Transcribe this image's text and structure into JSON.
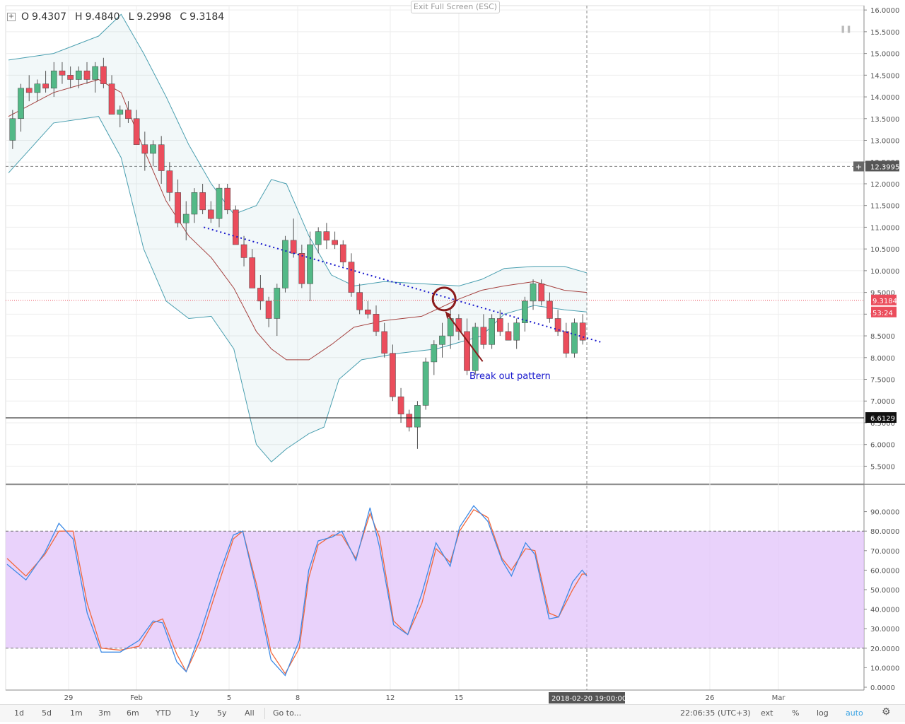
{
  "window": {
    "exit_fullscreen_label": "Exit Full Screen (ESC)"
  },
  "ohlc": {
    "o_label": "O",
    "o": "9.4307",
    "h_label": "H",
    "h": "9.4840",
    "l_label": "L",
    "l": "9.2998",
    "c_label": "C",
    "c": "9.3184"
  },
  "icons": {
    "expand": "plus-square-icon",
    "settings": "gear-icon",
    "pause": "pause-icon"
  },
  "colors": {
    "up": "#53b987",
    "down": "#eb4d5c",
    "bb_band": "#4a9fb0",
    "bb_basis": "#a5413f",
    "stoch_k": "#3d8ae6",
    "stoch_d": "#f2683c",
    "stoch_band": "#e2c3fa",
    "trendline": "#1515cc",
    "annotation": "#8b1a1a"
  },
  "chart_data": [
    {
      "type": "candlestick",
      "title": "",
      "price_axis": {
        "ylim": [
          5.1,
          16.1
        ],
        "ticks": [
          "16.0000",
          "15.5000",
          "15.0000",
          "14.5000",
          "14.0000",
          "13.5000",
          "13.0000",
          "12.5000",
          "12.0000",
          "11.5000",
          "11.0000",
          "10.5000",
          "10.0000",
          "9.5000",
          "9.0000",
          "8.5000",
          "8.0000",
          "7.5000",
          "7.0000",
          "6.5000",
          "6.0000",
          "5.5000"
        ]
      },
      "time_axis": {
        "labels": [
          "29",
          "Feb",
          "5",
          "8",
          "12",
          "15",
          "26",
          "Mar"
        ],
        "crosshair_label": "2018-02-20 19:00:00"
      },
      "markers": {
        "last_price": "9.3184",
        "countdown": "53:24",
        "crosshair_price": "12.3995",
        "support_level": "6.6129"
      },
      "bollinger": {
        "upper": [
          [
            0,
            14.85
          ],
          [
            6,
            15.0
          ],
          [
            12,
            15.4
          ],
          [
            15,
            15.9
          ],
          [
            18,
            15.0
          ],
          [
            21,
            14.0
          ],
          [
            24,
            12.9
          ],
          [
            27,
            12.0
          ],
          [
            30,
            11.3
          ],
          [
            33,
            11.5
          ],
          [
            35,
            12.1
          ],
          [
            37,
            12.0
          ],
          [
            40,
            10.8
          ],
          [
            43,
            9.9
          ],
          [
            46,
            9.65
          ],
          [
            50,
            9.75
          ],
          [
            55,
            9.7
          ],
          [
            60,
            9.65
          ],
          [
            63,
            9.8
          ],
          [
            66,
            10.05
          ],
          [
            70,
            10.1
          ],
          [
            74,
            10.1
          ],
          [
            77,
            9.95
          ]
        ],
        "lower": [
          [
            0,
            12.25
          ],
          [
            6,
            13.4
          ],
          [
            12,
            13.55
          ],
          [
            15,
            12.6
          ],
          [
            18,
            10.5
          ],
          [
            21,
            9.3
          ],
          [
            24,
            8.9
          ],
          [
            27,
            8.95
          ],
          [
            30,
            8.2
          ],
          [
            33,
            6.0
          ],
          [
            35,
            5.6
          ],
          [
            37,
            5.9
          ],
          [
            40,
            6.25
          ],
          [
            42,
            6.4
          ],
          [
            44,
            7.5
          ],
          [
            47,
            7.95
          ],
          [
            52,
            8.1
          ],
          [
            57,
            8.2
          ],
          [
            60,
            8.35
          ],
          [
            63,
            8.5
          ],
          [
            66,
            9.0
          ],
          [
            70,
            9.2
          ],
          [
            74,
            9.1
          ],
          [
            77,
            9.05
          ]
        ],
        "basis": [
          [
            0,
            13.55
          ],
          [
            6,
            14.1
          ],
          [
            12,
            14.4
          ],
          [
            15,
            14.1
          ],
          [
            18,
            12.8
          ],
          [
            21,
            11.6
          ],
          [
            24,
            10.8
          ],
          [
            27,
            10.3
          ],
          [
            30,
            9.6
          ],
          [
            33,
            8.6
          ],
          [
            35,
            8.2
          ],
          [
            37,
            7.95
          ],
          [
            40,
            7.95
          ],
          [
            43,
            8.3
          ],
          [
            46,
            8.7
          ],
          [
            50,
            8.85
          ],
          [
            55,
            8.95
          ],
          [
            60,
            9.35
          ],
          [
            63,
            9.55
          ],
          [
            66,
            9.65
          ],
          [
            70,
            9.75
          ],
          [
            74,
            9.55
          ],
          [
            77,
            9.5
          ]
        ]
      },
      "trendline": {
        "from": [
          26,
          11.0
        ],
        "to": [
          79,
          8.35
        ],
        "style": "dotted"
      },
      "support_line": 6.6129,
      "annotation": {
        "text": "Break out pattern",
        "circle_at": [
          58,
          9.35
        ],
        "arrow_from": [
          62,
          8.4
        ]
      },
      "candles_ohlc": [
        [
          13.0,
          13.7,
          12.8,
          13.5
        ],
        [
          13.5,
          14.3,
          13.2,
          14.2
        ],
        [
          14.2,
          14.5,
          13.9,
          14.1
        ],
        [
          14.1,
          14.4,
          13.9,
          14.3
        ],
        [
          14.3,
          14.6,
          14.1,
          14.2
        ],
        [
          14.2,
          14.8,
          14.0,
          14.6
        ],
        [
          14.6,
          14.8,
          14.3,
          14.5
        ],
        [
          14.5,
          14.7,
          14.2,
          14.4
        ],
        [
          14.4,
          14.7,
          14.2,
          14.6
        ],
        [
          14.6,
          14.8,
          14.3,
          14.4
        ],
        [
          14.4,
          14.8,
          14.1,
          14.7
        ],
        [
          14.7,
          14.9,
          14.2,
          14.3
        ],
        [
          14.3,
          14.5,
          13.7,
          13.6
        ],
        [
          13.6,
          13.8,
          13.3,
          13.7
        ],
        [
          13.7,
          13.9,
          13.4,
          13.5
        ],
        [
          13.5,
          13.7,
          12.9,
          12.9
        ],
        [
          12.9,
          13.2,
          12.3,
          12.7
        ],
        [
          12.7,
          13.0,
          12.4,
          12.9
        ],
        [
          12.9,
          13.1,
          12.0,
          12.3
        ],
        [
          12.3,
          12.5,
          11.6,
          11.8
        ],
        [
          11.8,
          12.1,
          11.0,
          11.1
        ],
        [
          11.1,
          11.6,
          10.7,
          11.3
        ],
        [
          11.3,
          11.9,
          11.1,
          11.8
        ],
        [
          11.8,
          12.0,
          11.3,
          11.4
        ],
        [
          11.4,
          11.6,
          11.1,
          11.2
        ],
        [
          11.2,
          12.0,
          11.0,
          11.9
        ],
        [
          11.9,
          12.0,
          11.3,
          11.4
        ],
        [
          11.4,
          11.5,
          10.6,
          10.6
        ],
        [
          10.6,
          10.8,
          10.1,
          10.3
        ],
        [
          10.3,
          10.5,
          9.8,
          9.6
        ],
        [
          9.6,
          9.9,
          9.1,
          9.3
        ],
        [
          9.3,
          9.4,
          8.7,
          8.9
        ],
        [
          8.9,
          9.7,
          8.5,
          9.6
        ],
        [
          9.6,
          10.8,
          9.5,
          10.7
        ],
        [
          10.7,
          11.2,
          10.3,
          10.4
        ],
        [
          10.4,
          10.6,
          9.6,
          9.7
        ],
        [
          9.7,
          10.9,
          9.3,
          10.6
        ],
        [
          10.6,
          11.0,
          10.4,
          10.9
        ],
        [
          10.9,
          11.1,
          10.5,
          10.7
        ],
        [
          10.7,
          10.9,
          10.5,
          10.6
        ],
        [
          10.6,
          10.7,
          10.1,
          10.2
        ],
        [
          10.2,
          10.4,
          9.4,
          9.5
        ],
        [
          9.5,
          9.7,
          9.0,
          9.1
        ],
        [
          9.1,
          9.3,
          8.9,
          9.0
        ],
        [
          9.0,
          9.2,
          8.5,
          8.6
        ],
        [
          8.6,
          8.8,
          8.0,
          8.1
        ],
        [
          8.1,
          8.3,
          7.0,
          7.1
        ],
        [
          7.1,
          7.3,
          6.5,
          6.7
        ],
        [
          6.7,
          6.8,
          6.3,
          6.4
        ],
        [
          6.4,
          7.0,
          5.9,
          6.9
        ],
        [
          6.9,
          8.0,
          6.8,
          7.9
        ],
        [
          7.9,
          8.4,
          7.6,
          8.3
        ],
        [
          8.3,
          8.8,
          8.0,
          8.5
        ],
        [
          8.5,
          9.1,
          8.2,
          8.9
        ],
        [
          8.9,
          9.0,
          8.4,
          8.6
        ],
        [
          8.6,
          8.9,
          7.6,
          7.7
        ],
        [
          7.7,
          8.8,
          7.6,
          8.7
        ],
        [
          8.7,
          9.0,
          8.2,
          8.3
        ],
        [
          8.3,
          9.0,
          8.2,
          8.9
        ],
        [
          8.9,
          9.1,
          8.5,
          8.6
        ],
        [
          8.6,
          8.8,
          8.4,
          8.4
        ],
        [
          8.4,
          8.9,
          8.2,
          8.8
        ],
        [
          8.8,
          9.4,
          8.6,
          9.3
        ],
        [
          9.3,
          9.8,
          9.1,
          9.7
        ],
        [
          9.7,
          9.8,
          9.2,
          9.3
        ],
        [
          9.3,
          9.5,
          8.8,
          8.9
        ],
        [
          8.9,
          9.1,
          8.5,
          8.6
        ],
        [
          8.6,
          8.8,
          8.0,
          8.1
        ],
        [
          8.1,
          8.9,
          8.0,
          8.8
        ],
        [
          8.8,
          9.0,
          8.3,
          8.4
        ]
      ]
    },
    {
      "type": "line",
      "title": "",
      "ylim": [
        0,
        100
      ],
      "ticks": [
        "90.0000",
        "80.0000",
        "70.0000",
        "60.0000",
        "50.0000",
        "40.0000",
        "30.0000",
        "20.0000",
        "10.0000",
        "0.0000"
      ],
      "band": [
        20,
        80
      ],
      "series": [
        {
          "key": "k",
          "values": [
            [
              0,
              63
            ],
            [
              4,
              55
            ],
            [
              8,
              69
            ],
            [
              11,
              84
            ],
            [
              14,
              76
            ],
            [
              17,
              38
            ],
            [
              20,
              18
            ],
            [
              24,
              18
            ],
            [
              28,
              24
            ],
            [
              31,
              34
            ],
            [
              33,
              33
            ],
            [
              36,
              13
            ],
            [
              38,
              8
            ],
            [
              41,
              28
            ],
            [
              45,
              58
            ],
            [
              48,
              78
            ],
            [
              50,
              80
            ],
            [
              53,
              49
            ],
            [
              56,
              14
            ],
            [
              59,
              6
            ],
            [
              62,
              24
            ],
            [
              64,
              60
            ],
            [
              66,
              75
            ],
            [
              69,
              77
            ],
            [
              71,
              80
            ],
            [
              74,
              65
            ],
            [
              77,
              92
            ],
            [
              79,
              72
            ],
            [
              82,
              32
            ],
            [
              85,
              27
            ],
            [
              88,
              48
            ],
            [
              91,
              74
            ],
            [
              94,
              62
            ],
            [
              96,
              82
            ],
            [
              99,
              93
            ],
            [
              102,
              85
            ],
            [
              105,
              65
            ],
            [
              107,
              57
            ],
            [
              110,
              74
            ],
            [
              112,
              68
            ],
            [
              115,
              35
            ],
            [
              117,
              36
            ],
            [
              120,
              54
            ],
            [
              122,
              60
            ],
            [
              123,
              57
            ]
          ]
        },
        {
          "key": "d",
          "values": [
            [
              0,
              66
            ],
            [
              4,
              57
            ],
            [
              8,
              68
            ],
            [
              11,
              80
            ],
            [
              14,
              80
            ],
            [
              17,
              43
            ],
            [
              20,
              20
            ],
            [
              24,
              19
            ],
            [
              28,
              21
            ],
            [
              31,
              33
            ],
            [
              33,
              35
            ],
            [
              36,
              17
            ],
            [
              38,
              8
            ],
            [
              41,
              24
            ],
            [
              45,
              54
            ],
            [
              48,
              76
            ],
            [
              50,
              80
            ],
            [
              53,
              52
            ],
            [
              56,
              18
            ],
            [
              59,
              7
            ],
            [
              62,
              20
            ],
            [
              64,
              56
            ],
            [
              66,
              73
            ],
            [
              69,
              78
            ],
            [
              71,
              78
            ],
            [
              74,
              66
            ],
            [
              77,
              89
            ],
            [
              79,
              77
            ],
            [
              82,
              34
            ],
            [
              85,
              27
            ],
            [
              88,
              43
            ],
            [
              91,
              71
            ],
            [
              94,
              64
            ],
            [
              96,
              80
            ],
            [
              99,
              91
            ],
            [
              102,
              87
            ],
            [
              105,
              66
            ],
            [
              107,
              60
            ],
            [
              110,
              71
            ],
            [
              112,
              70
            ],
            [
              115,
              38
            ],
            [
              117,
              36
            ],
            [
              120,
              50
            ],
            [
              122,
              58
            ],
            [
              123,
              58
            ]
          ]
        }
      ]
    }
  ],
  "toolbar": {
    "ranges": [
      "1d",
      "5d",
      "1m",
      "3m",
      "6m",
      "YTD",
      "1y",
      "5y",
      "All"
    ],
    "goto": "Go to...",
    "clock": "22:06:35 (UTC+3)",
    "ext": "ext",
    "pct": "%",
    "log": "log",
    "auto": "auto"
  }
}
